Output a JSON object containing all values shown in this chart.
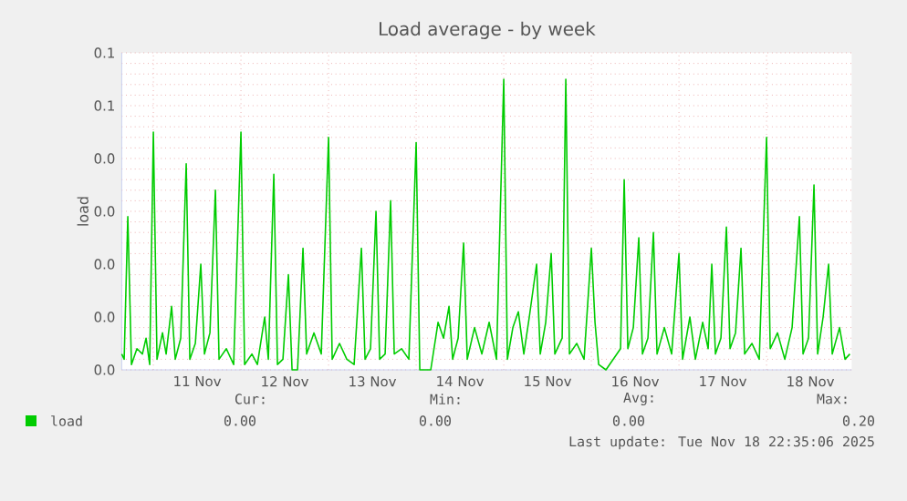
{
  "chart_data": {
    "type": "line",
    "title": "Load average - by week",
    "ylabel": "load",
    "xlim": [
      "2025-11-10T15:20",
      "2025-11-18T23:20"
    ],
    "xticks": [
      {
        "value": "2025-11-11T00:00",
        "label": null
      },
      {
        "value": "2025-11-11T12:00",
        "label": "11 Nov"
      },
      {
        "value": "2025-11-12T00:00",
        "label": null
      },
      {
        "value": "2025-11-12T12:00",
        "label": "12 Nov"
      },
      {
        "value": "2025-11-13T00:00",
        "label": null
      },
      {
        "value": "2025-11-13T12:00",
        "label": "13 Nov"
      },
      {
        "value": "2025-11-14T00:00",
        "label": null
      },
      {
        "value": "2025-11-14T12:00",
        "label": "14 Nov"
      },
      {
        "value": "2025-11-15T00:00",
        "label": null
      },
      {
        "value": "2025-11-15T12:00",
        "label": "15 Nov"
      },
      {
        "value": "2025-11-16T00:00",
        "label": null
      },
      {
        "value": "2025-11-16T12:00",
        "label": "16 Nov"
      },
      {
        "value": "2025-11-17T00:00",
        "label": null
      },
      {
        "value": "2025-11-17T12:00",
        "label": "17 Nov"
      },
      {
        "value": "2025-11-18T00:00",
        "label": null
      },
      {
        "value": "2025-11-18T12:00",
        "label": "18 Nov"
      }
    ],
    "ylim": [
      0,
      0.06
    ],
    "yticks": [
      {
        "value": 0,
        "label": "0.0"
      },
      {
        "value": 0.01,
        "label": "0.0"
      },
      {
        "value": 0.02,
        "label": "0.0"
      },
      {
        "value": 0.03,
        "label": "0.0"
      },
      {
        "value": 0.04,
        "label": "0.0"
      },
      {
        "value": 0.05,
        "label": "0.1"
      },
      {
        "value": 0.06,
        "label": "0.1"
      }
    ],
    "grid": true,
    "legend": "bottom left",
    "annotations": [
      "Cur:",
      "Min:",
      "Avg:",
      "Max:",
      "0.00",
      "0.00",
      "0.00",
      "0.20",
      "Last update: Tue Nov 18 22:35:06 2025"
    ],
    "x": [
      "2025-11-10T15:20",
      "2025-11-10T16:00",
      "2025-11-10T17:00",
      "2025-11-10T18:00",
      "2025-11-10T19:30",
      "2025-11-10T21:00",
      "2025-11-10T22:00",
      "2025-11-10T23:00",
      "2025-11-11T00:00",
      "2025-11-11T01:00",
      "2025-11-11T02:30",
      "2025-11-11T03:30",
      "2025-11-11T05:00",
      "2025-11-11T06:00",
      "2025-11-11T07:30",
      "2025-11-11T09:00",
      "2025-11-11T10:00",
      "2025-11-11T11:30",
      "2025-11-11T13:00",
      "2025-11-11T14:00",
      "2025-11-11T15:30",
      "2025-11-11T17:00",
      "2025-11-11T18:00",
      "2025-11-11T20:00",
      "2025-11-11T22:00",
      "2025-11-12T00:00",
      "2025-11-12T01:00",
      "2025-11-12T03:00",
      "2025-11-12T04:30",
      "2025-11-12T06:30",
      "2025-11-12T07:30",
      "2025-11-12T09:00",
      "2025-11-12T10:00",
      "2025-11-12T11:30",
      "2025-11-12T13:00",
      "2025-11-12T14:00",
      "2025-11-12T15:30",
      "2025-11-12T17:00",
      "2025-11-12T18:00",
      "2025-11-12T20:00",
      "2025-11-12T22:00",
      "2025-11-13T00:00",
      "2025-11-13T01:00",
      "2025-11-13T03:00",
      "2025-11-13T05:00",
      "2025-11-13T07:00",
      "2025-11-13T09:00",
      "2025-11-13T10:00",
      "2025-11-13T11:30",
      "2025-11-13T13:00",
      "2025-11-13T14:00",
      "2025-11-13T15:30",
      "2025-11-13T17:00",
      "2025-11-13T18:00",
      "2025-11-13T20:00",
      "2025-11-13T22:00",
      "2025-11-14T00:00",
      "2025-11-14T01:00",
      "2025-11-14T04:00",
      "2025-11-14T06:00",
      "2025-11-14T07:30",
      "2025-11-14T09:00",
      "2025-11-14T10:00",
      "2025-11-14T11:30",
      "2025-11-14T13:00",
      "2025-11-14T14:00",
      "2025-11-14T16:00",
      "2025-11-14T18:00",
      "2025-11-14T20:00",
      "2025-11-14T22:00",
      "2025-11-15T00:00",
      "2025-11-15T01:00",
      "2025-11-15T02:30",
      "2025-11-15T04:00",
      "2025-11-15T05:30",
      "2025-11-15T07:00",
      "2025-11-15T09:00",
      "2025-11-15T10:00",
      "2025-11-15T11:30",
      "2025-11-15T13:00",
      "2025-11-15T14:00",
      "2025-11-15T16:00",
      "2025-11-15T17:00",
      "2025-11-15T18:00",
      "2025-11-15T20:00",
      "2025-11-15T22:00",
      "2025-11-16T00:00",
      "2025-11-16T01:00",
      "2025-11-16T02:00",
      "2025-11-16T04:00",
      "2025-11-16T06:00",
      "2025-11-16T08:00",
      "2025-11-16T09:00",
      "2025-11-16T10:00",
      "2025-11-16T11:30",
      "2025-11-16T13:00",
      "2025-11-16T14:00",
      "2025-11-16T15:30",
      "2025-11-16T17:00",
      "2025-11-16T18:00",
      "2025-11-16T20:00",
      "2025-11-16T22:00",
      "2025-11-17T00:00",
      "2025-11-17T01:00",
      "2025-11-17T03:00",
      "2025-11-17T04:30",
      "2025-11-17T06:30",
      "2025-11-17T08:00",
      "2025-11-17T09:00",
      "2025-11-17T10:00",
      "2025-11-17T11:30",
      "2025-11-17T13:00",
      "2025-11-17T14:00",
      "2025-11-17T15:30",
      "2025-11-17T17:00",
      "2025-11-17T18:00",
      "2025-11-17T20:00",
      "2025-11-17T22:00",
      "2025-11-18T00:00",
      "2025-11-18T01:00",
      "2025-11-18T03:00",
      "2025-11-18T05:00",
      "2025-11-18T07:00",
      "2025-11-18T09:00",
      "2025-11-18T10:00",
      "2025-11-18T11:30",
      "2025-11-18T13:00",
      "2025-11-18T14:00",
      "2025-11-18T15:30",
      "2025-11-18T17:00",
      "2025-11-18T18:00",
      "2025-11-18T20:00",
      "2025-11-18T21:30",
      "2025-11-18T22:50"
    ],
    "series": [
      {
        "name": "load",
        "color": "#00cc00",
        "values": [
          0.003,
          0.002,
          0.029,
          0.001,
          0.004,
          0.003,
          0.006,
          0.001,
          0.045,
          0.002,
          0.007,
          0.003,
          0.012,
          0.002,
          0.006,
          0.039,
          0.002,
          0.005,
          0.02,
          0.003,
          0.007,
          0.034,
          0.002,
          0.004,
          0.001,
          0.045,
          0.001,
          0.003,
          0.001,
          0.01,
          0.002,
          0.037,
          0.001,
          0.002,
          0.018,
          0.0,
          0.0,
          0.023,
          0.003,
          0.007,
          0.003,
          0.044,
          0.002,
          0.005,
          0.002,
          0.001,
          0.023,
          0.002,
          0.004,
          0.03,
          0.002,
          0.003,
          0.032,
          0.003,
          0.004,
          0.002,
          0.043,
          0.0,
          0.0,
          0.009,
          0.006,
          0.012,
          0.002,
          0.006,
          0.024,
          0.002,
          0.008,
          0.003,
          0.009,
          0.002,
          0.055,
          0.002,
          0.008,
          0.011,
          0.003,
          0.01,
          0.02,
          0.003,
          0.009,
          0.022,
          0.003,
          0.006,
          0.055,
          0.003,
          0.005,
          0.002,
          0.023,
          0.009,
          0.001,
          0.0,
          0.002,
          0.004,
          0.036,
          0.004,
          0.008,
          0.025,
          0.003,
          0.006,
          0.026,
          0.003,
          0.008,
          0.003,
          0.022,
          0.002,
          0.01,
          0.002,
          0.009,
          0.004,
          0.02,
          0.003,
          0.006,
          0.027,
          0.004,
          0.007,
          0.023,
          0.003,
          0.005,
          0.002,
          0.044,
          0.004,
          0.007,
          0.002,
          0.008,
          0.029,
          0.003,
          0.006,
          0.035,
          0.003,
          0.01,
          0.02,
          0.003,
          0.008,
          0.002,
          0.003
        ]
      }
    ]
  }
}
